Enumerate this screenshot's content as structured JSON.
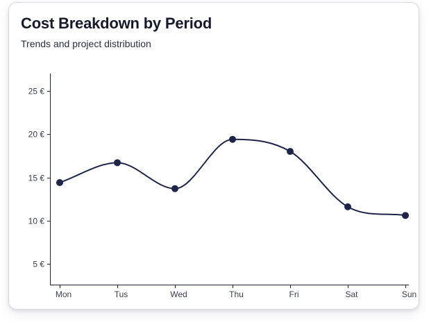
{
  "card": {
    "title": "Cost Breakdown by Period",
    "subtitle": "Trends and project distribution"
  },
  "chart_data": {
    "type": "line",
    "categories": [
      "Mon",
      "Tus",
      "Wed",
      "Thu",
      "Fri",
      "Sat",
      "Sun"
    ],
    "values": [
      14.4,
      16.7,
      13.7,
      19.4,
      18.0,
      11.6,
      10.6
    ],
    "ylim": [
      2.6,
      27
    ],
    "yticks": [
      5,
      10,
      15,
      20,
      25
    ],
    "ytick_labels": [
      "5 €",
      "10 €",
      "15 €",
      "20 €",
      "25 €"
    ],
    "grid": false,
    "smooth": true,
    "line_color": "#1f2548",
    "marker_color": "#1f2548"
  }
}
